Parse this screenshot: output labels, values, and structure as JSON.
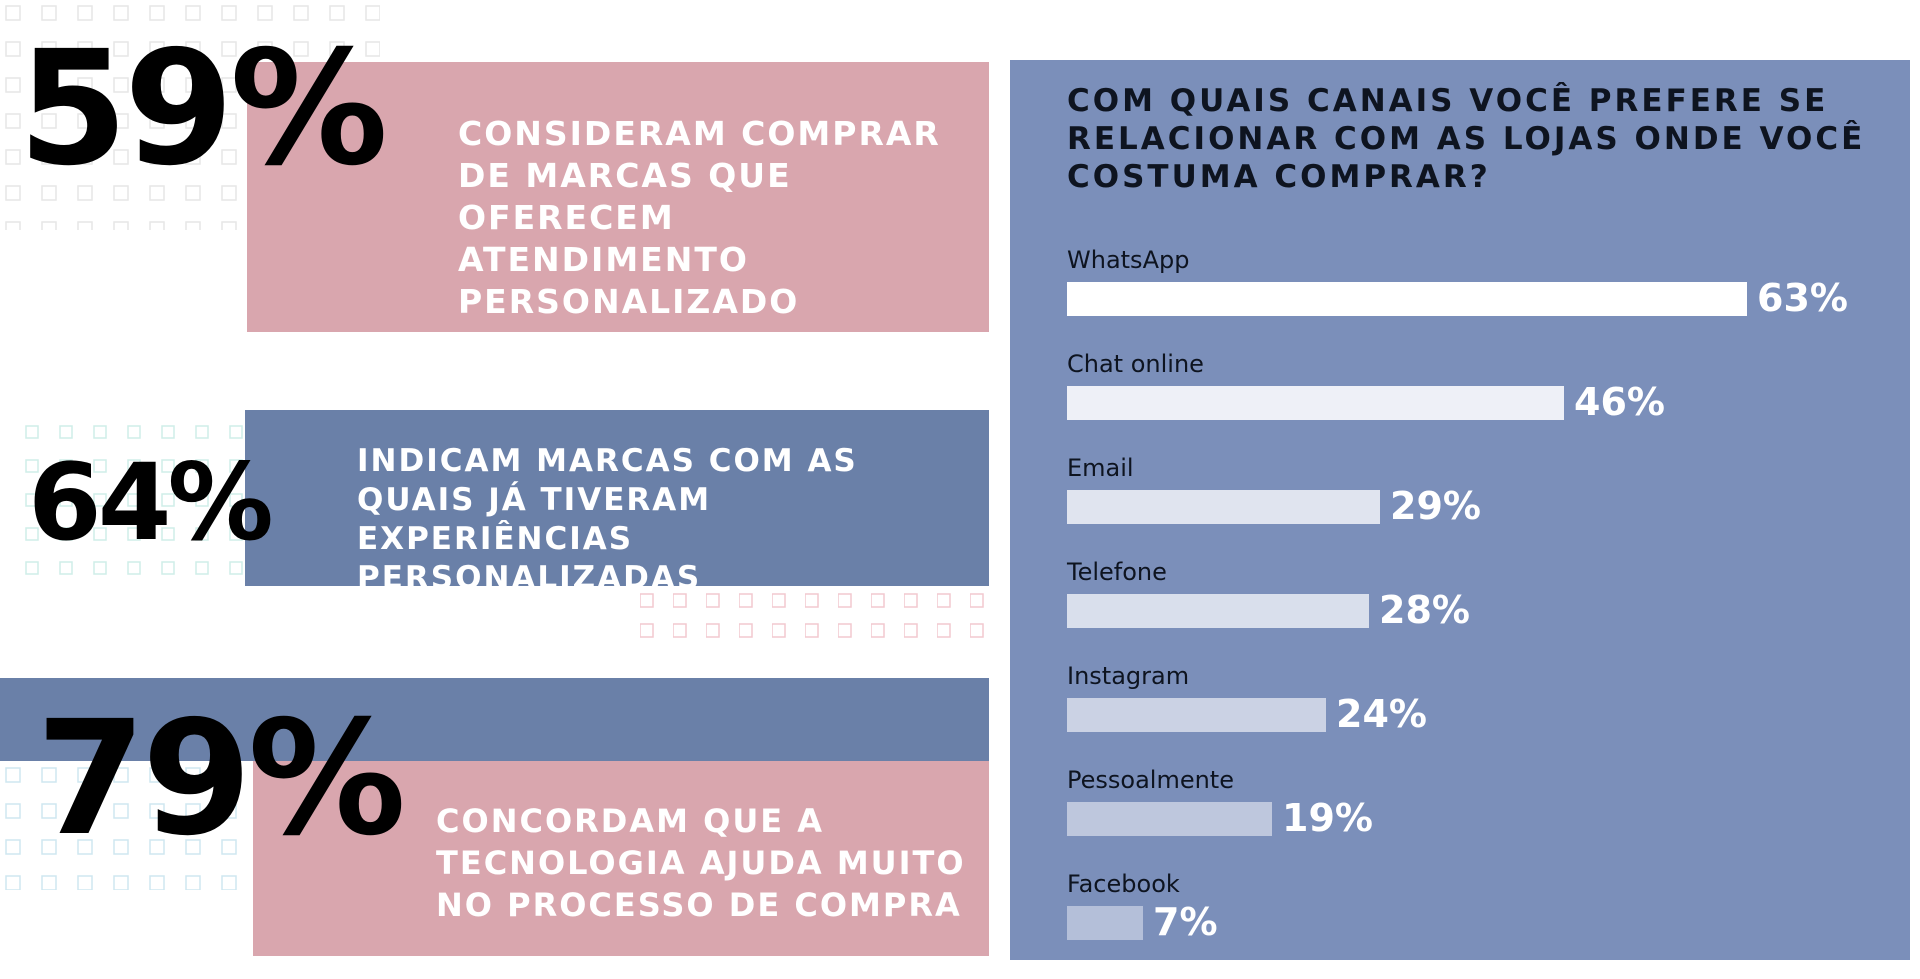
{
  "stats": [
    {
      "value": "59%",
      "text": "Consideram comprar de marcas que oferecem atendimento personalizado"
    },
    {
      "value": "64%",
      "text": "Indicam marcas com as quais já tiveram experiências personalizadas"
    },
    {
      "value": "79%",
      "text": "Concordam que a tecnologia ajuda muito no processo de compra"
    }
  ],
  "colors": {
    "pink": "#d9a6ae",
    "blue": "#6a80a8",
    "panel": "#7b8fba"
  },
  "chart_data": {
    "type": "bar",
    "title": "Com quais canais você prefere se relacionar com as lojas onde você costuma comprar?",
    "categories": [
      "WhatsApp",
      "Chat online",
      "Email",
      "Telefone",
      "Instagram",
      "Pessoalmente",
      "Facebook"
    ],
    "values": [
      63,
      46,
      29,
      28,
      24,
      19,
      7
    ],
    "value_labels": [
      "63%",
      "46%",
      "29%",
      "28%",
      "24%",
      "19%",
      "7%"
    ],
    "orientation": "horizontal",
    "xlim": [
      0,
      63
    ]
  }
}
